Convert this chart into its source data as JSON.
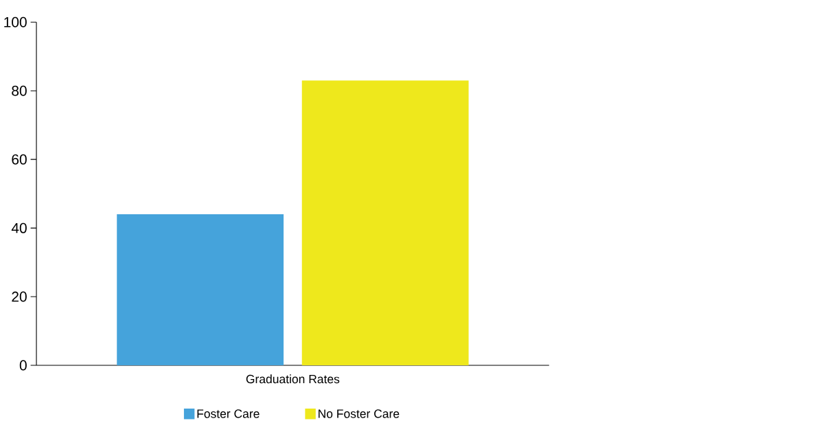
{
  "chart_data": {
    "type": "bar",
    "categories": [
      "Graduation Rates"
    ],
    "series": [
      {
        "name": "Foster Care",
        "color": "#45a3db",
        "values": [
          44
        ]
      },
      {
        "name": "No Foster Care",
        "color": "#eee81c",
        "values": [
          83
        ]
      }
    ],
    "ylim": [
      0,
      100
    ],
    "yticks": [
      0,
      20,
      40,
      60,
      80,
      100
    ],
    "legend": "bottom"
  }
}
